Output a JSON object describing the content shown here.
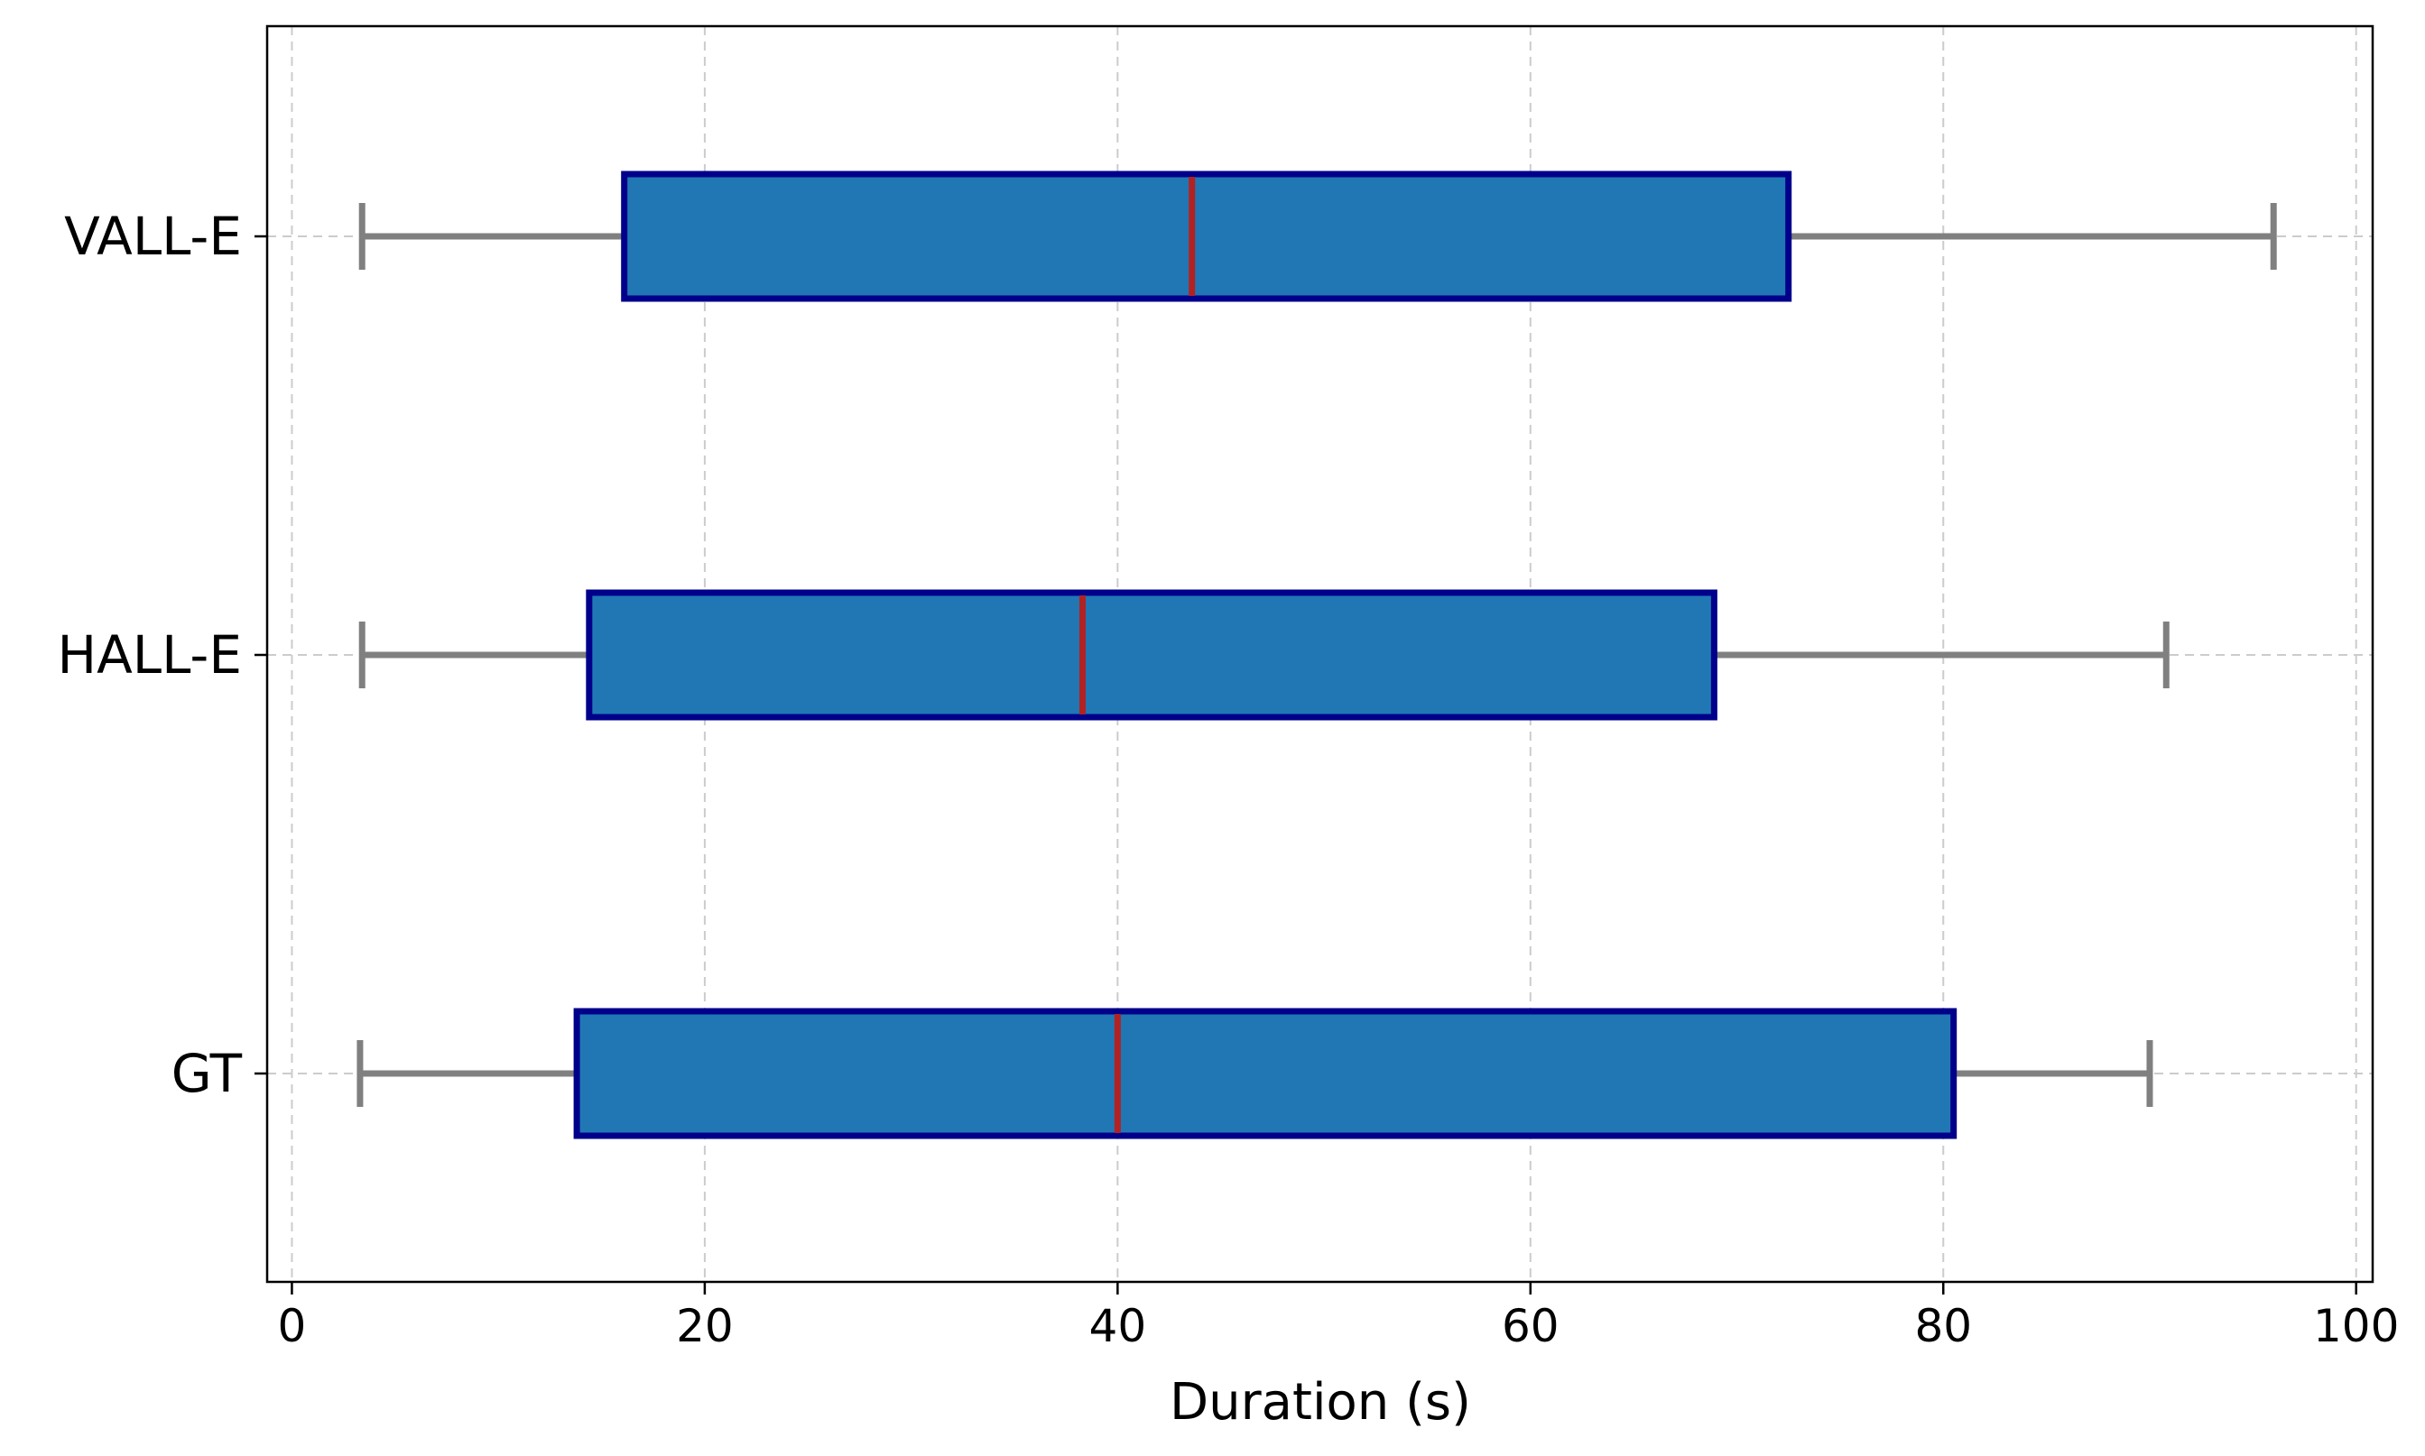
{
  "chart_data": {
    "type": "boxplot",
    "orientation": "horizontal",
    "xlabel": "Duration (s)",
    "ylabel": "",
    "title": "",
    "xlim": [
      -1.2,
      100.8
    ],
    "x_ticks": [
      0,
      20,
      40,
      60,
      80,
      100
    ],
    "categories": [
      "GT",
      "HALL-E",
      "VALL-E"
    ],
    "boxes": [
      {
        "label": "GT",
        "whisker_low": 3.3,
        "q1": 13.8,
        "median": 40.0,
        "q3": 80.5,
        "whisker_high": 90.0
      },
      {
        "label": "HALL-E",
        "whisker_low": 3.4,
        "q1": 14.4,
        "median": 38.3,
        "q3": 68.9,
        "whisker_high": 90.8
      },
      {
        "label": "VALL-E",
        "whisker_low": 3.4,
        "q1": 16.1,
        "median": 43.6,
        "q3": 72.5,
        "whisker_high": 96.0
      }
    ],
    "grid": true,
    "colors": {
      "box_fill": "#2077b4",
      "box_edge": "#00008b",
      "median": "#b22222",
      "whisker": "#808080",
      "grid": "#cccccc",
      "axis": "#000000"
    }
  }
}
